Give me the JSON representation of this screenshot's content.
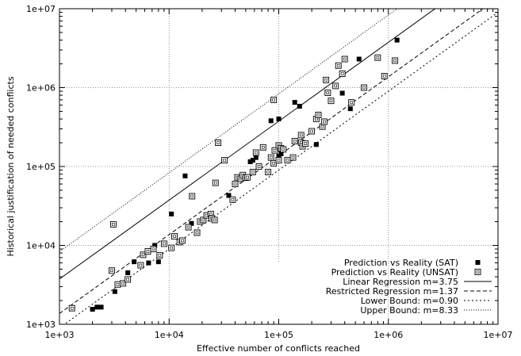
{
  "chart_data": {
    "type": "scatter",
    "title": "",
    "xlabel": "Effective number of conflicts reached",
    "ylabel": "Historical justification of needed conflicts",
    "xscale": "log",
    "yscale": "log",
    "xlim": [
      1000,
      10000000
    ],
    "ylim": [
      1000,
      10000000
    ],
    "x_ticks": [
      1000,
      10000,
      100000,
      1000000,
      10000000
    ],
    "x_tick_labels": [
      "1e+03",
      "1e+04",
      "1e+05",
      "1e+06",
      "1e+07"
    ],
    "y_ticks": [
      1000,
      10000,
      100000,
      1000000,
      10000000
    ],
    "y_tick_labels": [
      "1e+03",
      "1e+04",
      "1e+05",
      "1e+06",
      "1e+07"
    ],
    "grid": true,
    "legend_position": "bottom-right",
    "series": [
      {
        "name": "Prediction vs Reality (SAT)",
        "kind": "points",
        "marker": "filled-square",
        "points": [
          [
            2000,
            1550
          ],
          [
            2200,
            1650
          ],
          [
            2400,
            1650
          ],
          [
            3200,
            2600
          ],
          [
            4200,
            4500
          ],
          [
            4800,
            6200
          ],
          [
            6500,
            6000
          ],
          [
            7400,
            10000
          ],
          [
            8000,
            6200
          ],
          [
            10500,
            25000
          ],
          [
            14000,
            76000
          ],
          [
            16000,
            19000
          ],
          [
            35000,
            43000
          ],
          [
            55000,
            115000
          ],
          [
            58000,
            120000
          ],
          [
            62000,
            130000
          ],
          [
            85000,
            380000
          ],
          [
            100000,
            400000
          ],
          [
            100000,
            135000
          ],
          [
            105000,
            145000
          ],
          [
            140000,
            650000
          ],
          [
            155000,
            580000
          ],
          [
            220000,
            190000
          ],
          [
            380000,
            850000
          ],
          [
            450000,
            540000
          ],
          [
            540000,
            2300000
          ],
          [
            1200000,
            4000000
          ]
        ]
      },
      {
        "name": "Prediction vs Reality (UNSAT)",
        "kind": "points",
        "marker": "open-square",
        "points": [
          [
            1300,
            1600
          ],
          [
            3000,
            4800
          ],
          [
            3100,
            18500
          ],
          [
            3400,
            3200
          ],
          [
            3800,
            3300
          ],
          [
            4200,
            3700
          ],
          [
            5500,
            5600
          ],
          [
            5800,
            7600
          ],
          [
            6400,
            8400
          ],
          [
            7200,
            9000
          ],
          [
            8200,
            7500
          ],
          [
            9000,
            10500
          ],
          [
            10500,
            9300
          ],
          [
            11200,
            13000
          ],
          [
            12500,
            11000
          ],
          [
            13200,
            11500
          ],
          [
            15000,
            17000
          ],
          [
            16200,
            42000
          ],
          [
            18000,
            14500
          ],
          [
            19200,
            20000
          ],
          [
            20500,
            21000
          ],
          [
            22000,
            24000
          ],
          [
            24000,
            25000
          ],
          [
            24500,
            22000
          ],
          [
            26000,
            21000
          ],
          [
            26500,
            62000
          ],
          [
            28000,
            200000
          ],
          [
            32000,
            120000
          ],
          [
            38000,
            38000
          ],
          [
            40000,
            60000
          ],
          [
            42000,
            73000
          ],
          [
            45000,
            70000
          ],
          [
            47000,
            78000
          ],
          [
            50000,
            72000
          ],
          [
            52000,
            73000
          ],
          [
            58000,
            85000
          ],
          [
            62000,
            150000
          ],
          [
            66000,
            100000
          ],
          [
            72000,
            175000
          ],
          [
            80000,
            85000
          ],
          [
            85000,
            130000
          ],
          [
            90000,
            110000
          ],
          [
            90000,
            700000
          ],
          [
            92000,
            160000
          ],
          [
            100000,
            120000
          ],
          [
            100000,
            185000
          ],
          [
            105000,
            170000
          ],
          [
            110000,
            165000
          ],
          [
            120000,
            120000
          ],
          [
            135000,
            130000
          ],
          [
            140000,
            210000
          ],
          [
            160000,
            200000
          ],
          [
            160000,
            250000
          ],
          [
            165000,
            180000
          ],
          [
            175000,
            195000
          ],
          [
            200000,
            280000
          ],
          [
            220000,
            400000
          ],
          [
            230000,
            450000
          ],
          [
            250000,
            320000
          ],
          [
            260000,
            370000
          ],
          [
            270000,
            1250000
          ],
          [
            280000,
            860000
          ],
          [
            300000,
            680000
          ],
          [
            330000,
            1050000
          ],
          [
            350000,
            1900000
          ],
          [
            380000,
            1500000
          ],
          [
            400000,
            2300000
          ],
          [
            460000,
            650000
          ],
          [
            600000,
            1000000
          ],
          [
            800000,
            2400000
          ],
          [
            920000,
            1400000
          ],
          [
            1150000,
            2200000
          ]
        ]
      },
      {
        "name": "Linear Regression m=3.75",
        "kind": "line",
        "dash": "solid",
        "endpoints": [
          [
            1000,
            3750
          ],
          [
            4500000,
            16875000
          ]
        ]
      },
      {
        "name": "Restricted Regression m=1.37",
        "kind": "line",
        "dash": "dashed",
        "endpoints": [
          [
            1000,
            1370
          ],
          [
            7300000,
            10000000
          ]
        ]
      },
      {
        "name": "Lower Bound: m=0.90",
        "kind": "line",
        "dash": "dotted",
        "endpoints": [
          [
            1000,
            900
          ],
          [
            10000000,
            9000000
          ]
        ]
      },
      {
        "name": "Upper Bound: m=8.33",
        "kind": "line",
        "dash": "fine-dotted",
        "endpoints": [
          [
            1000,
            8330
          ],
          [
            1200000,
            10000000
          ]
        ]
      }
    ]
  }
}
